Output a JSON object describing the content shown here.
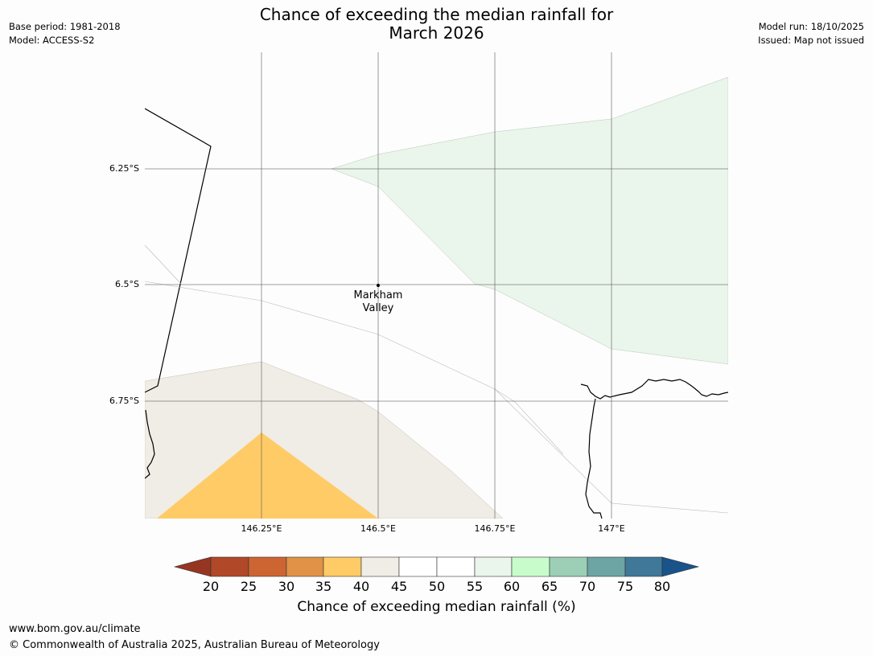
{
  "title_line1": "Chance of exceeding the median rainfall for",
  "title_line2": "March 2026",
  "meta_left": {
    "base_period": "Base period: 1981-2018",
    "model": "Model: ACCESS-S2"
  },
  "meta_right": {
    "model_run": "Model run: 18/10/2025",
    "issued": "Issued: Map not issued"
  },
  "map": {
    "latitude_labels": [
      "6.25°S",
      "6.5°S",
      "6.75°S"
    ],
    "longitude_labels": [
      "146.25°E",
      "146.5°E",
      "146.75°E",
      "147°E"
    ],
    "place": {
      "name_line1": "Markham",
      "name_line2": "Valley",
      "lon": 146.5,
      "lat": -6.5
    }
  },
  "colorbar": {
    "ticks": [
      "20",
      "25",
      "30",
      "35",
      "40",
      "45",
      "50",
      "55",
      "60",
      "65",
      "70",
      "75",
      "80"
    ],
    "colors": {
      "under": "#973523",
      "c20_25": "#b14828",
      "c25_30": "#cd6532",
      "c30_35": "#e19246",
      "c35_40": "#fecb66",
      "c40_45": "#f0ece6",
      "c45_50": "#ffffff",
      "c50_55": "#ffffff",
      "c55_60": "#eaf5eb",
      "c60_65": "#c9fccb",
      "c65_70": "#9dcfb6",
      "c70_75": "#6da4a4",
      "c75_80": "#3f7898",
      "over": "#195389"
    },
    "label": "Chance of exceeding median rainfall (%)"
  },
  "footer": {
    "url": "www.bom.gov.au/climate",
    "copyright": "© Commonwealth of Australia 2025, Australian Bureau of Meteorology"
  }
}
